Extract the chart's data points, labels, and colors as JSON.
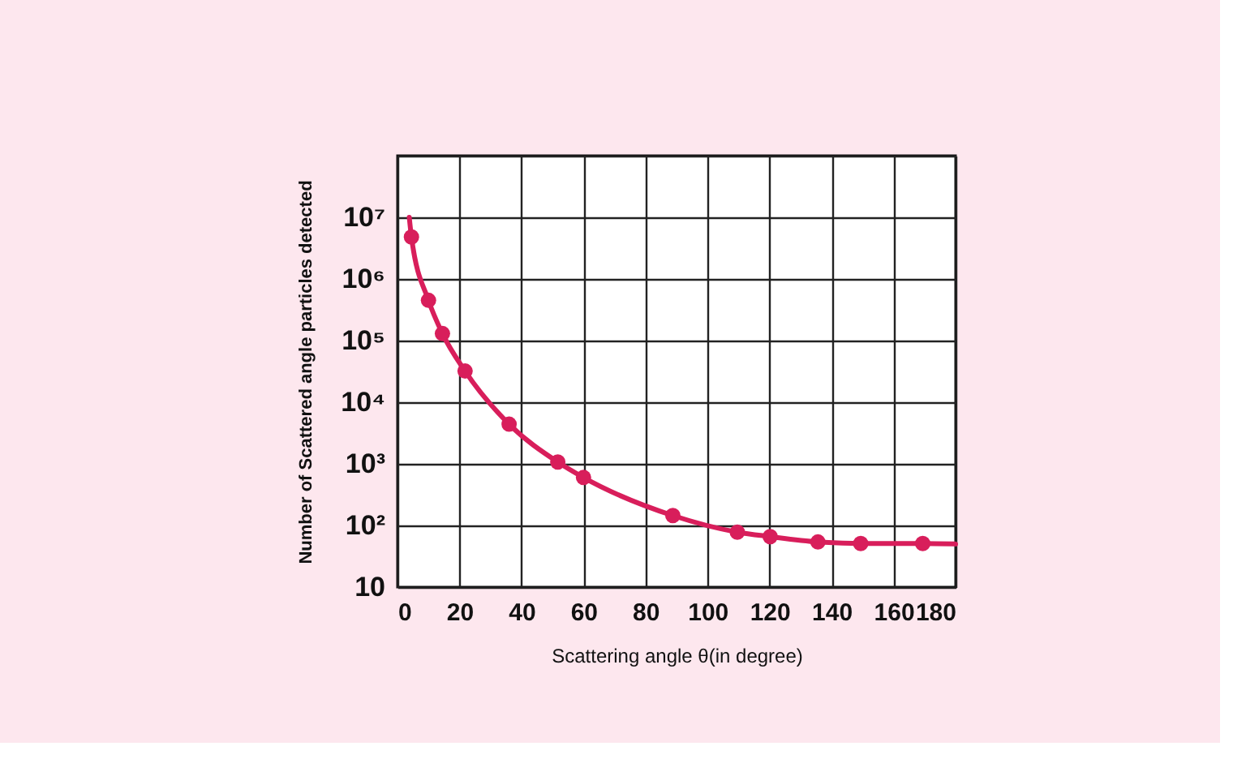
{
  "chart_data": {
    "type": "line",
    "xlabel": "Scattering angle θ(in degree)",
    "ylabel": "Number of Scattered angle particles detected",
    "series": [
      {
        "color": "#d81e5b",
        "marker": "none",
        "x": [
          3.8,
          4.5,
          10.0,
          14.5,
          21.8,
          36.0,
          51.7,
          60.0,
          88.8,
          109.6,
          120.2,
          135.6,
          149.4,
          169.4,
          180
        ],
        "values": [
          10000000,
          4800000,
          450000,
          130000,
          32000,
          4400,
          1070,
          600,
          145,
          78,
          66,
          54,
          51,
          51,
          50
        ]
      },
      {
        "type": "scatter",
        "color": "#d81e5b",
        "marker": "circle",
        "x": [
          4.5,
          10.0,
          14.5,
          21.8,
          36.0,
          51.7,
          60.0,
          88.8,
          109.6,
          120.2,
          135.6,
          149.4,
          169.4
        ],
        "values": [
          4800000,
          450000,
          130000,
          32000,
          4400,
          1070,
          600,
          145,
          78,
          66,
          54,
          51,
          51
        ]
      }
    ],
    "log": "y",
    "xlim": [
      0,
      180
    ],
    "xticks": [
      0,
      20,
      40,
      60,
      80,
      100,
      120,
      140,
      160,
      180
    ],
    "ylim": [
      10,
      100000000
    ],
    "yticks": [
      {
        "value": 10,
        "label": "10"
      },
      {
        "value": 100,
        "label": "10²"
      },
      {
        "value": 1000,
        "label": "10³"
      },
      {
        "value": 10000,
        "label": "10⁴"
      },
      {
        "value": 100000,
        "label": "10⁵"
      },
      {
        "value": 1000000,
        "label": "10⁶"
      },
      {
        "value": 10000000,
        "label": "10⁷"
      },
      {
        "value": 100000000,
        "label": null
      }
    ],
    "grid": true
  }
}
